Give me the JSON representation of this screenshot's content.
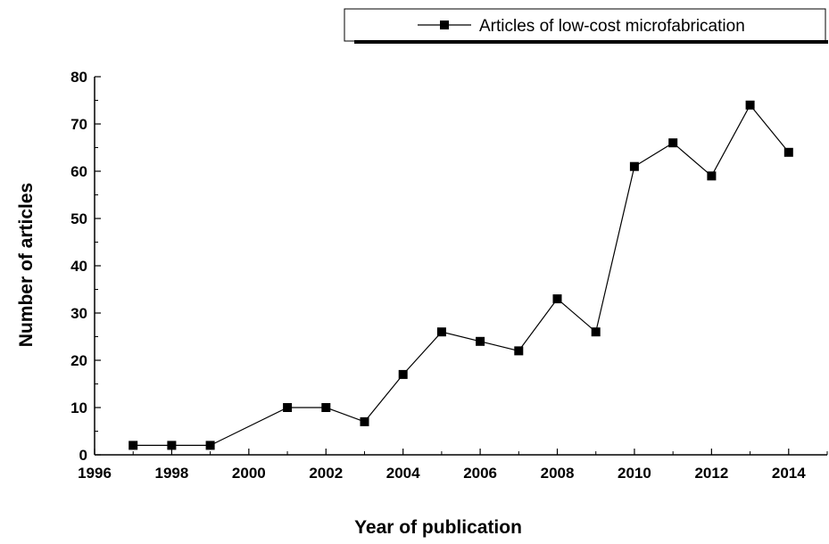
{
  "chart_data": {
    "type": "line",
    "title": "",
    "xlabel": "Year of publication",
    "ylabel": "Number of articles",
    "xlim": [
      1996,
      2015
    ],
    "ylim": [
      0,
      80
    ],
    "x_ticks": [
      1996,
      1998,
      2000,
      2002,
      2004,
      2006,
      2008,
      2010,
      2012,
      2014
    ],
    "y_ticks": [
      0,
      10,
      20,
      30,
      40,
      50,
      60,
      70,
      80
    ],
    "grid": false,
    "legend": "top-right",
    "marker": "square",
    "line_color": "#000000",
    "series": [
      {
        "name": "Articles of low-cost microfabrication",
        "x": [
          1997,
          1998,
          1999,
          2001,
          2002,
          2003,
          2004,
          2005,
          2006,
          2007,
          2008,
          2009,
          2010,
          2011,
          2012,
          2013,
          2014
        ],
        "y": [
          2,
          2,
          2,
          10,
          10,
          7,
          17,
          26,
          24,
          22,
          33,
          26,
          61,
          66,
          59,
          74,
          64
        ]
      }
    ]
  }
}
